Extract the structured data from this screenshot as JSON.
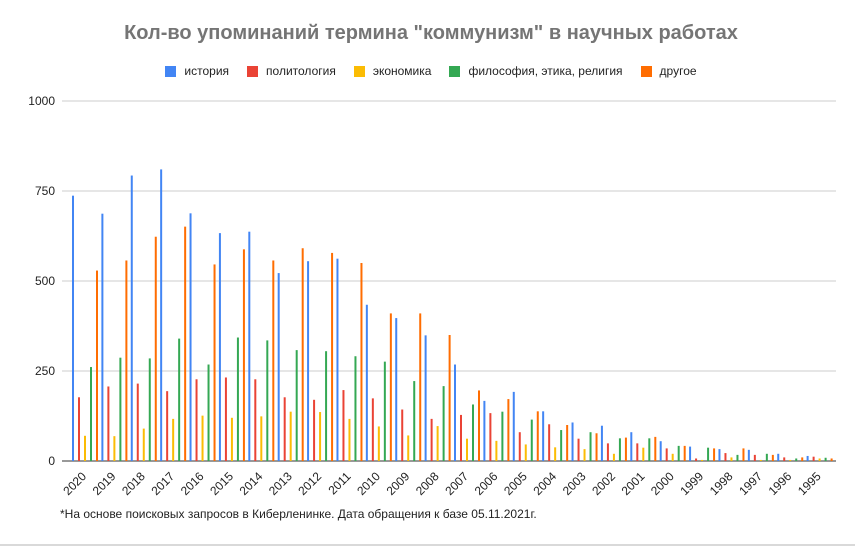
{
  "chart_data": {
    "type": "bar",
    "title": "Кол-во упоминаний термина \"коммунизм\" в научных работах",
    "categories": [
      "2020",
      "2019",
      "2018",
      "2017",
      "2016",
      "2015",
      "2014",
      "2013",
      "2012",
      "2011",
      "2010",
      "2009",
      "2008",
      "2007",
      "2006",
      "2005",
      "2004",
      "2003",
      "2002",
      "2001",
      "2000",
      "1999",
      "1998",
      "1997",
      "1996",
      "1995"
    ],
    "series": [
      {
        "name": "история",
        "color": "#4285f4",
        "values": [
          737,
          687,
          793,
          810,
          688,
          633,
          637,
          522,
          555,
          562,
          434,
          397,
          349,
          268,
          167,
          192,
          138,
          107,
          98,
          80,
          55,
          40,
          33,
          31,
          20,
          14
        ]
      },
      {
        "name": "политология",
        "color": "#ea4335",
        "values": [
          177,
          207,
          215,
          194,
          227,
          232,
          227,
          177,
          170,
          197,
          174,
          143,
          117,
          128,
          133,
          80,
          102,
          62,
          49,
          49,
          35,
          7,
          22,
          17,
          10,
          12
        ]
      },
      {
        "name": "экономика",
        "color": "#fbbc04",
        "values": [
          70,
          69,
          90,
          117,
          126,
          120,
          124,
          137,
          136,
          117,
          96,
          71,
          97,
          62,
          56,
          46,
          38,
          33,
          20,
          37,
          20,
          3,
          10,
          3,
          3,
          7
        ]
      },
      {
        "name": "философия, этика, религия",
        "color": "#34a853",
        "values": [
          261,
          287,
          285,
          340,
          268,
          343,
          335,
          308,
          305,
          291,
          276,
          222,
          208,
          157,
          137,
          115,
          86,
          80,
          63,
          63,
          42,
          37,
          17,
          20,
          7,
          9
        ]
      },
      {
        "name": "другое",
        "color": "#ff6d01",
        "values": [
          529,
          557,
          623,
          651,
          546,
          588,
          557,
          591,
          578,
          550,
          410,
          410,
          350,
          196,
          172,
          138,
          100,
          77,
          65,
          67,
          42,
          35,
          35,
          17,
          10,
          7
        ]
      }
    ],
    "ylim": [
      0,
      1000
    ],
    "yticks": [
      0,
      250,
      500,
      750,
      1000
    ],
    "grid": true,
    "legend_position": "top"
  },
  "footnote": "*На основе поисковых запросов в Киберленинке. Дата обращения к базе 05.11.2021г."
}
